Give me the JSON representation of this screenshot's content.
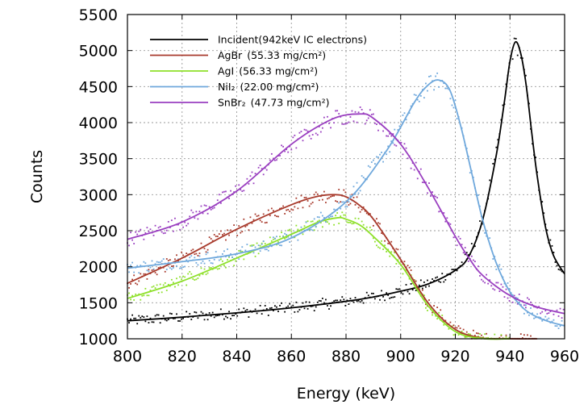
{
  "chart_data": {
    "type": "line",
    "title": "",
    "xlabel": "Energy (keV)",
    "ylabel": "Counts",
    "xlim": [
      800,
      960
    ],
    "ylim": [
      1000,
      5500
    ],
    "xticks": [
      800,
      820,
      840,
      860,
      880,
      900,
      920,
      940,
      960
    ],
    "yticks": [
      1000,
      1500,
      2000,
      2500,
      3000,
      3500,
      4000,
      4500,
      5000,
      5500
    ],
    "grid": true,
    "legend_position": "top-left",
    "series": [
      {
        "name": "Incident(942keV IC electrons)",
        "color": "#000000",
        "x": [
          800,
          820,
          840,
          860,
          880,
          890,
          900,
          910,
          920,
          925,
          930,
          935,
          938,
          940,
          942,
          944,
          946,
          948,
          950,
          953,
          956,
          960
        ],
        "y": [
          1250,
          1300,
          1360,
          1430,
          1520,
          1580,
          1660,
          1760,
          1950,
          2150,
          2650,
          3550,
          4300,
          4850,
          5120,
          4950,
          4500,
          3850,
          3250,
          2550,
          2150,
          1900
        ]
      },
      {
        "name": "AgBr",
        "name_suffix": "(55.33 mg/cm²)",
        "color": "#a83a2c",
        "x": [
          800,
          820,
          840,
          860,
          870,
          876,
          880,
          885,
          890,
          900,
          910,
          920,
          930,
          940,
          950
        ],
        "y": [
          1770,
          2120,
          2520,
          2860,
          2980,
          3000,
          2970,
          2850,
          2660,
          2100,
          1500,
          1130,
          1010,
          1000,
          1000
        ]
      },
      {
        "name": "AgI",
        "name_suffix": "(56.33 mg/cm²)",
        "color": "#8ee02a",
        "x": [
          800,
          820,
          840,
          860,
          870,
          877,
          880,
          885,
          890,
          900,
          910,
          920,
          930,
          940
        ],
        "y": [
          1560,
          1800,
          2120,
          2450,
          2620,
          2680,
          2660,
          2580,
          2420,
          2030,
          1460,
          1100,
          1005,
          1000
        ]
      },
      {
        "name": "NiI₂",
        "name_suffix": "(22.00 mg/cm²)",
        "color": "#6fa8dc",
        "x": [
          800,
          820,
          840,
          860,
          880,
          895,
          905,
          910,
          914,
          918,
          922,
          926,
          930,
          935,
          940,
          945,
          950,
          955,
          960
        ],
        "y": [
          1980,
          2070,
          2180,
          2400,
          2900,
          3620,
          4280,
          4520,
          4590,
          4450,
          3950,
          3300,
          2650,
          2050,
          1650,
          1420,
          1300,
          1230,
          1180
        ]
      },
      {
        "name": "SnBr₂",
        "name_suffix": "(47.73 mg/cm²)",
        "color": "#9a3fc0",
        "x": [
          800,
          820,
          840,
          860,
          875,
          885,
          890,
          900,
          910,
          920,
          925,
          930,
          940,
          950,
          960
        ],
        "y": [
          2380,
          2620,
          3050,
          3700,
          4050,
          4120,
          4060,
          3700,
          3100,
          2420,
          2120,
          1880,
          1600,
          1440,
          1350
        ]
      }
    ]
  }
}
